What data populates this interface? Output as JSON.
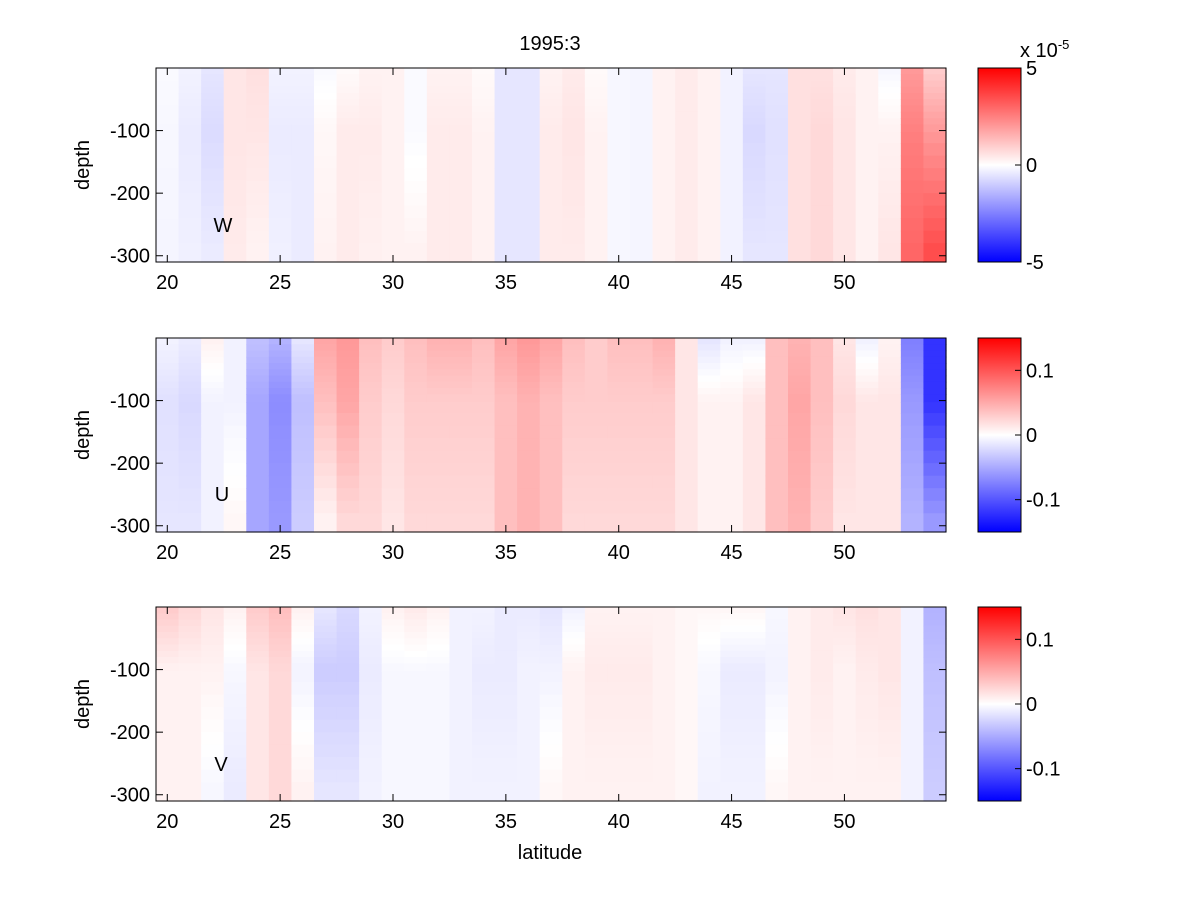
{
  "figure_title": "1995:3",
  "x_label": "latitude",
  "chart_data": [
    {
      "type": "heatmap",
      "panel_label": "W",
      "ylabel": "depth",
      "xlim": [
        19.5,
        54.5
      ],
      "ylim": [
        -310,
        0
      ],
      "x_ticks": [
        "20",
        "25",
        "30",
        "35",
        "40",
        "45",
        "50"
      ],
      "x_tick_values": [
        20,
        25,
        30,
        35,
        40,
        45,
        50
      ],
      "y_ticks": [
        "-100",
        "-200",
        "-300"
      ],
      "y_tick_values": [
        -100,
        -200,
        -300
      ],
      "colorbar": {
        "min": -5e-05,
        "max": 5e-05,
        "ticks": [
          "5",
          "0",
          "-5"
        ],
        "tick_values": [
          5,
          0,
          -5
        ],
        "exponent_label": "x 10",
        "exponent": "-5"
      },
      "lat_columns": [
        20,
        21,
        22,
        23,
        24,
        25,
        26,
        27,
        28,
        29,
        30,
        31,
        32,
        33,
        34,
        35,
        36,
        37,
        38,
        39,
        40,
        41,
        42,
        43,
        44,
        45,
        46,
        47,
        48,
        49,
        50,
        51,
        52,
        53,
        54
      ],
      "depth_rows": [
        -5,
        -15,
        -25,
        -35,
        -45,
        -55,
        -65,
        -75,
        -85,
        -95,
        -110,
        -130,
        -150,
        -170,
        -190,
        -210,
        -230,
        -250,
        -270,
        -290
      ],
      "column_profiles_pct": [
        [
          -2,
          -3,
          -4
        ],
        [
          -5,
          -8,
          -6
        ],
        [
          -10,
          -14,
          -8
        ],
        [
          10,
          10,
          8
        ],
        [
          12,
          10,
          5
        ],
        [
          -5,
          -8,
          -6
        ],
        [
          -5,
          -8,
          -8
        ],
        [
          -2,
          3,
          5
        ],
        [
          2,
          8,
          8
        ],
        [
          5,
          8,
          6
        ],
        [
          5,
          5,
          5
        ],
        [
          -2,
          -2,
          5
        ],
        [
          5,
          8,
          8
        ],
        [
          5,
          8,
          8
        ],
        [
          2,
          5,
          5
        ],
        [
          -10,
          -10,
          -10
        ],
        [
          -10,
          -10,
          -10
        ],
        [
          5,
          8,
          8
        ],
        [
          8,
          10,
          8
        ],
        [
          2,
          5,
          5
        ],
        [
          -3,
          -3,
          -3
        ],
        [
          -4,
          -4,
          -4
        ],
        [
          5,
          5,
          5
        ],
        [
          8,
          8,
          8
        ],
        [
          5,
          5,
          5
        ],
        [
          -5,
          -5,
          -5
        ],
        [
          -10,
          -15,
          -10
        ],
        [
          -10,
          -12,
          -10
        ],
        [
          12,
          12,
          12
        ],
        [
          12,
          15,
          15
        ],
        [
          8,
          10,
          10
        ],
        [
          5,
          5,
          5
        ],
        [
          -3,
          5,
          10
        ],
        [
          40,
          50,
          60
        ],
        [
          20,
          40,
          70
        ]
      ]
    },
    {
      "type": "heatmap",
      "panel_label": "U",
      "ylabel": "depth",
      "xlim": [
        19.5,
        54.5
      ],
      "ylim": [
        -310,
        0
      ],
      "x_ticks": [
        "20",
        "25",
        "30",
        "35",
        "40",
        "45",
        "50"
      ],
      "x_tick_values": [
        20,
        25,
        30,
        35,
        40,
        45,
        50
      ],
      "y_ticks": [
        "-100",
        "-200",
        "-300"
      ],
      "y_tick_values": [
        -100,
        -200,
        -300
      ],
      "colorbar": {
        "min": -0.15,
        "max": 0.15,
        "ticks": [
          "0.1",
          "0",
          "-0.1"
        ],
        "tick_values": [
          0.1,
          0,
          -0.1
        ]
      },
      "lat_columns": [
        20,
        21,
        22,
        23,
        24,
        25,
        26,
        27,
        28,
        29,
        30,
        31,
        32,
        33,
        34,
        35,
        36,
        37,
        38,
        39,
        40,
        41,
        42,
        43,
        44,
        45,
        46,
        47,
        48,
        49,
        50,
        51,
        52,
        53,
        54
      ],
      "depth_rows": [
        -5,
        -15,
        -25,
        -35,
        -45,
        -55,
        -65,
        -75,
        -85,
        -95,
        -110,
        -130,
        -150,
        -170,
        -190,
        -210,
        -230,
        -250,
        -270,
        -290
      ],
      "column_profiles_pct": [
        [
          -5,
          -12,
          -10
        ],
        [
          -8,
          -15,
          -10
        ],
        [
          5,
          -5,
          -5
        ],
        [
          -5,
          -5,
          3
        ],
        [
          -25,
          -35,
          -35
        ],
        [
          -30,
          -45,
          -40
        ],
        [
          -10,
          -25,
          -20
        ],
        [
          35,
          25,
          5
        ],
        [
          40,
          35,
          15
        ],
        [
          25,
          20,
          15
        ],
        [
          20,
          15,
          10
        ],
        [
          25,
          20,
          15
        ],
        [
          30,
          20,
          15
        ],
        [
          30,
          20,
          15
        ],
        [
          25,
          20,
          15
        ],
        [
          35,
          25,
          25
        ],
        [
          40,
          30,
          30
        ],
        [
          35,
          25,
          25
        ],
        [
          25,
          20,
          15
        ],
        [
          20,
          20,
          15
        ],
        [
          25,
          20,
          15
        ],
        [
          25,
          20,
          15
        ],
        [
          30,
          20,
          15
        ],
        [
          10,
          10,
          10
        ],
        [
          -10,
          5,
          5
        ],
        [
          -5,
          5,
          5
        ],
        [
          -5,
          10,
          10
        ],
        [
          25,
          25,
          25
        ],
        [
          30,
          35,
          30
        ],
        [
          25,
          25,
          20
        ],
        [
          10,
          15,
          10
        ],
        [
          -5,
          10,
          10
        ],
        [
          5,
          10,
          10
        ],
        [
          -50,
          -40,
          -30
        ],
        [
          -80,
          -80,
          -40
        ]
      ]
    },
    {
      "type": "heatmap",
      "panel_label": "V",
      "ylabel": "depth",
      "xlim": [
        19.5,
        54.5
      ],
      "ylim": [
        -310,
        0
      ],
      "x_ticks": [
        "20",
        "25",
        "30",
        "35",
        "40",
        "45",
        "50"
      ],
      "x_tick_values": [
        20,
        25,
        30,
        35,
        40,
        45,
        50
      ],
      "y_ticks": [
        "-100",
        "-200",
        "-300"
      ],
      "y_tick_values": [
        -100,
        -200,
        -300
      ],
      "colorbar": {
        "min": -0.15,
        "max": 0.15,
        "ticks": [
          "0.1",
          "0",
          "-0.1"
        ],
        "tick_values": [
          0.1,
          0,
          -0.1
        ]
      },
      "lat_columns": [
        20,
        21,
        22,
        23,
        24,
        25,
        26,
        27,
        28,
        29,
        30,
        31,
        32,
        33,
        34,
        35,
        36,
        37,
        38,
        39,
        40,
        41,
        42,
        43,
        44,
        45,
        46,
        47,
        48,
        49,
        50,
        51,
        52,
        53,
        54
      ],
      "depth_rows": [
        -5,
        -15,
        -25,
        -35,
        -45,
        -55,
        -65,
        -75,
        -85,
        -95,
        -110,
        -130,
        -150,
        -170,
        -190,
        -210,
        -230,
        -250,
        -270,
        -290
      ],
      "column_profiles_pct": [
        [
          20,
          5,
          5
        ],
        [
          15,
          5,
          5
        ],
        [
          10,
          5,
          -3
        ],
        [
          5,
          -3,
          -8
        ],
        [
          20,
          10,
          10
        ],
        [
          25,
          15,
          15
        ],
        [
          5,
          -5,
          5
        ],
        [
          -10,
          -20,
          -10
        ],
        [
          -15,
          -20,
          -10
        ],
        [
          -5,
          -8,
          -5
        ],
        [
          5,
          -3,
          -3
        ],
        [
          8,
          -3,
          -3
        ],
        [
          5,
          -3,
          -3
        ],
        [
          -5,
          -5,
          -5
        ],
        [
          -5,
          -8,
          -5
        ],
        [
          -8,
          -8,
          -5
        ],
        [
          -8,
          -5,
          -5
        ],
        [
          -10,
          -5,
          3
        ],
        [
          -5,
          5,
          5
        ],
        [
          5,
          8,
          5
        ],
        [
          5,
          8,
          5
        ],
        [
          5,
          8,
          5
        ],
        [
          5,
          5,
          5
        ],
        [
          3,
          3,
          3
        ],
        [
          3,
          -3,
          -5
        ],
        [
          3,
          -8,
          -5
        ],
        [
          3,
          -8,
          -5
        ],
        [
          -3,
          -5,
          3
        ],
        [
          5,
          5,
          5
        ],
        [
          8,
          8,
          5
        ],
        [
          10,
          5,
          5
        ],
        [
          12,
          8,
          5
        ],
        [
          10,
          10,
          5
        ],
        [
          -5,
          -5,
          -5
        ],
        [
          -30,
          -25,
          -20
        ]
      ]
    }
  ]
}
